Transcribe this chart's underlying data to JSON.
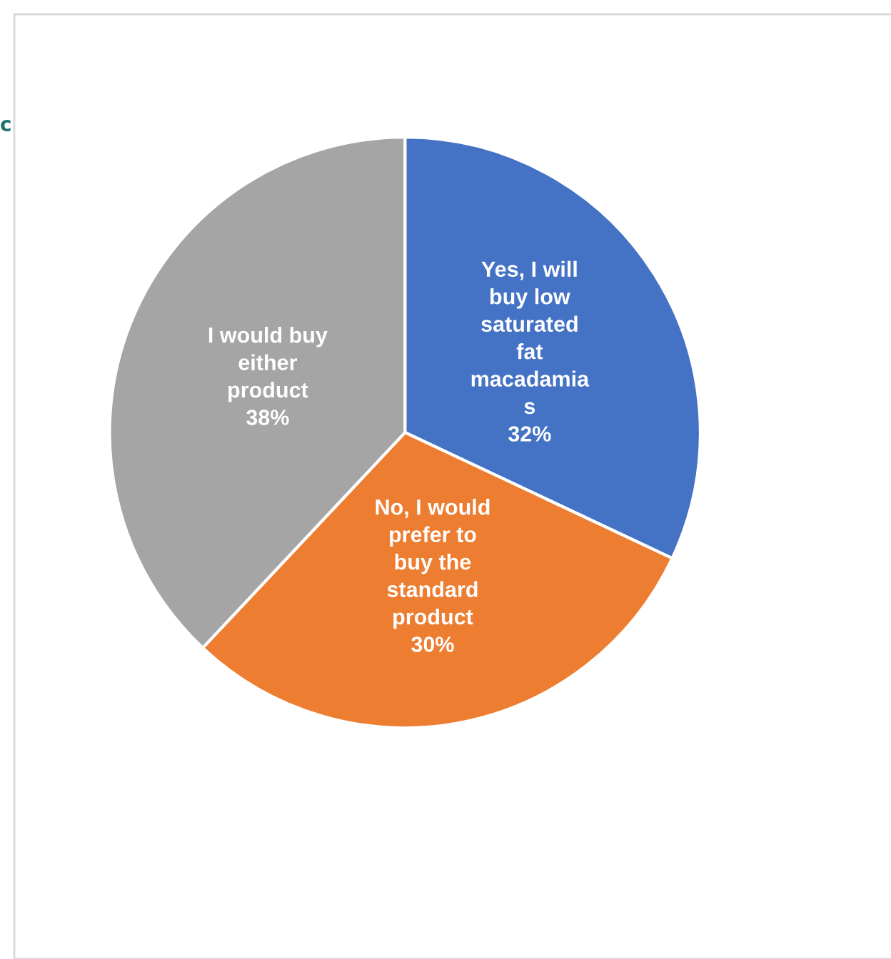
{
  "chart_data": {
    "type": "pie",
    "categories": [
      "Yes, I will\nbuy low\nsaturated\nfat\nmacadamia\ns",
      "No, I would\nprefer to\nbuy the\nstandard\nproduct",
      "I would buy\neither\nproduct"
    ],
    "values": [
      32,
      30,
      38
    ],
    "value_labels": [
      "32%",
      "30%",
      "38%"
    ],
    "colors": [
      "#4472c4",
      "#ed7d31",
      "#a5a5a5"
    ],
    "annotations": [
      "c"
    ],
    "legend": false
  }
}
